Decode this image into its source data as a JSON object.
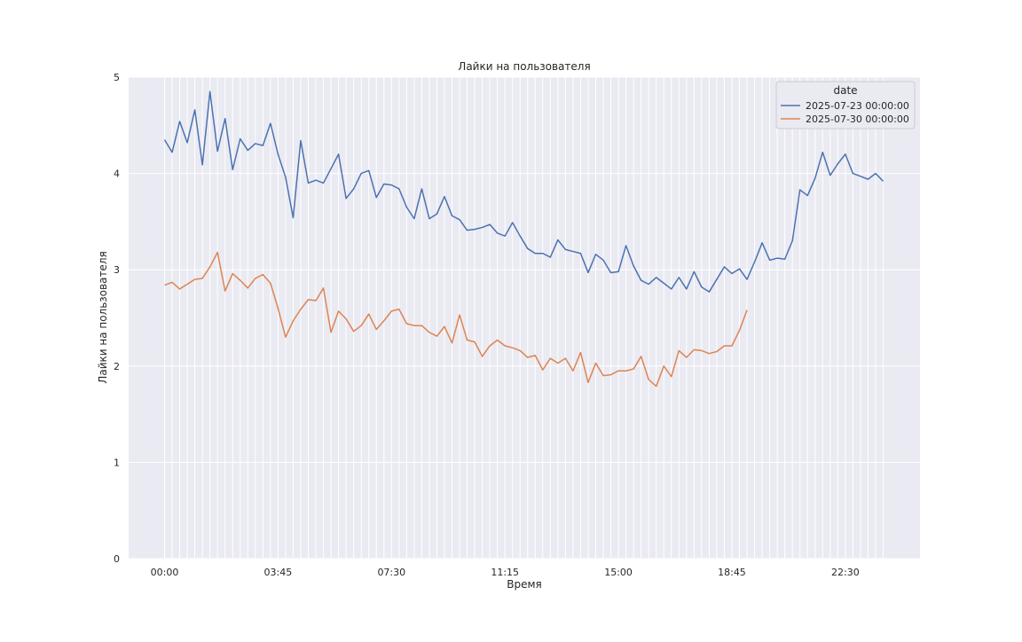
{
  "chart_data": {
    "type": "line",
    "title": "Лайки на пользователя",
    "xlabel": "Время",
    "ylabel": "Лайки на пользователя",
    "ylim": [
      0,
      5
    ],
    "yticks": [
      "0",
      "1",
      "2",
      "3",
      "4",
      "5"
    ],
    "xticks": [
      "00:00",
      "03:45",
      "07:30",
      "11:15",
      "15:00",
      "18:45",
      "22:30"
    ],
    "x_interval_minutes": 15,
    "grid": true,
    "background": "#eaeaf2",
    "legend": {
      "title": "date",
      "position": "top-right"
    },
    "series": [
      {
        "name": "2025-07-23 00:00:00",
        "color": "#4c72b0",
        "values": [
          4.35,
          4.22,
          4.54,
          4.32,
          4.66,
          4.09,
          4.85,
          4.23,
          4.57,
          4.04,
          4.36,
          4.24,
          4.31,
          4.29,
          4.52,
          4.2,
          3.96,
          3.54,
          4.34,
          3.9,
          3.93,
          3.9,
          4.05,
          4.2,
          3.74,
          3.84,
          4.0,
          4.03,
          3.75,
          3.89,
          3.88,
          3.84,
          3.65,
          3.53,
          3.84,
          3.53,
          3.58,
          3.76,
          3.56,
          3.52,
          3.41,
          3.42,
          3.44,
          3.47,
          3.38,
          3.35,
          3.49,
          3.35,
          3.22,
          3.17,
          3.17,
          3.13,
          3.31,
          3.21,
          3.19,
          3.17,
          2.97,
          3.16,
          3.1,
          2.97,
          2.98,
          3.25,
          3.04,
          2.89,
          2.85,
          2.92,
          2.86,
          2.8,
          2.92,
          2.8,
          2.98,
          2.82,
          2.77,
          2.9,
          3.03,
          2.96,
          3.01,
          2.9,
          3.08,
          3.28,
          3.1,
          3.12,
          3.11,
          3.3,
          3.83,
          3.77,
          3.95,
          4.22,
          3.98,
          4.1,
          4.2,
          4.0,
          3.97,
          3.94,
          4.0,
          3.92
        ]
      },
      {
        "name": "2025-07-30 00:00:00",
        "color": "#dd8452",
        "values": [
          2.84,
          2.87,
          2.8,
          2.85,
          2.9,
          2.91,
          3.03,
          3.18,
          2.78,
          2.96,
          2.89,
          2.81,
          2.91,
          2.95,
          2.86,
          2.6,
          2.3,
          2.47,
          2.59,
          2.69,
          2.68,
          2.81,
          2.35,
          2.57,
          2.49,
          2.36,
          2.42,
          2.54,
          2.38,
          2.47,
          2.57,
          2.59,
          2.44,
          2.42,
          2.42,
          2.35,
          2.31,
          2.41,
          2.24,
          2.53,
          2.27,
          2.25,
          2.1,
          2.21,
          2.27,
          2.21,
          2.19,
          2.16,
          2.09,
          2.11,
          1.96,
          2.08,
          2.03,
          2.08,
          1.95,
          2.14,
          1.83,
          2.03,
          1.9,
          1.91,
          1.95,
          1.95,
          1.97,
          2.1,
          1.86,
          1.79,
          2.0,
          1.89,
          2.16,
          2.09,
          2.17,
          2.16,
          2.13,
          2.15,
          2.21,
          2.21,
          2.37,
          2.58
        ]
      }
    ]
  }
}
